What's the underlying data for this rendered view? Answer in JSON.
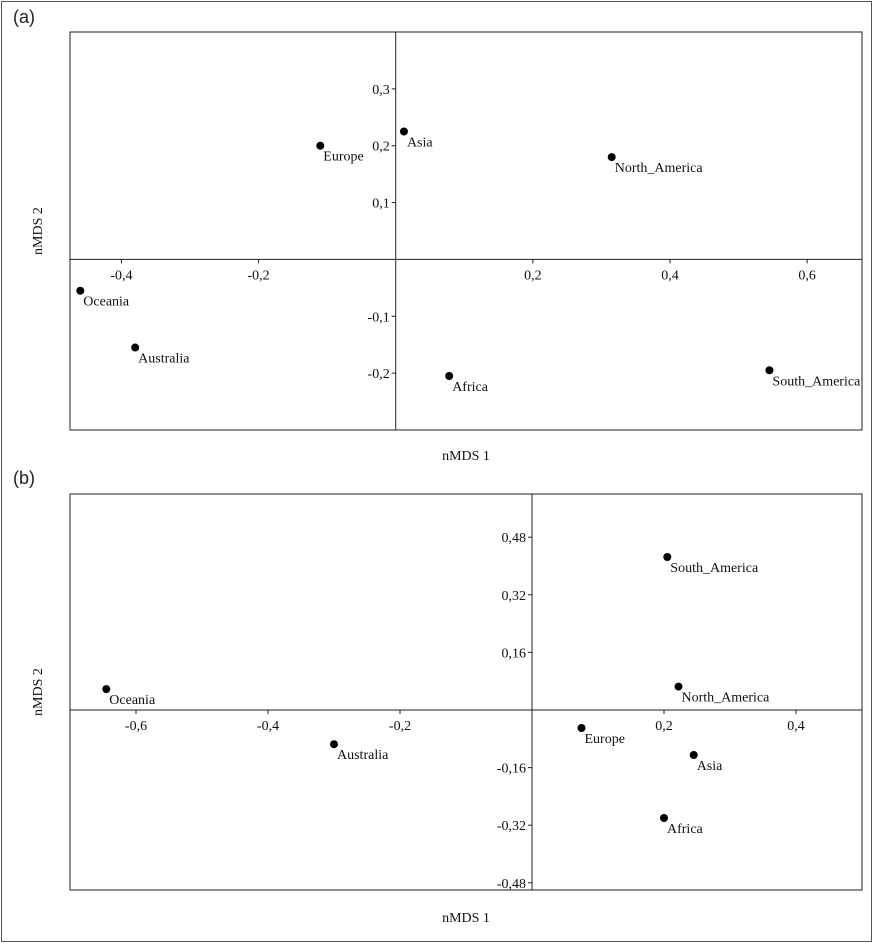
{
  "chart_data": [
    {
      "panel": "(a)",
      "type": "scatter",
      "xlabel": "nMDS 1",
      "ylabel": "nMDS 2",
      "xlim": [
        -0.475,
        0.68
      ],
      "ylim": [
        -0.3,
        0.4
      ],
      "xticks": [
        -0.4,
        -0.2,
        0.2,
        0.4,
        0.6
      ],
      "xtick_labels": [
        "-0,4",
        "-0,2",
        "0,2",
        "0,4",
        "0,6"
      ],
      "yticks": [
        0.3,
        0.2,
        0.1,
        -0.1,
        -0.2
      ],
      "ytick_labels": [
        "0,3",
        "0,2",
        "0,1",
        "-0,1",
        "-0,2"
      ],
      "points": [
        {
          "label": "Europe",
          "x": -0.11,
          "y": 0.2
        },
        {
          "label": "Asia",
          "x": 0.012,
          "y": 0.225
        },
        {
          "label": "North_America",
          "x": 0.315,
          "y": 0.18
        },
        {
          "label": "Oceania",
          "x": -0.46,
          "y": -0.055
        },
        {
          "label": "Australia",
          "x": -0.38,
          "y": -0.155
        },
        {
          "label": "Africa",
          "x": 0.078,
          "y": -0.205
        },
        {
          "label": "South_America",
          "x": 0.545,
          "y": -0.195
        }
      ]
    },
    {
      "panel": "(b)",
      "type": "scatter",
      "xlabel": "nMDS 1",
      "ylabel": "nMDS 2",
      "xlim": [
        -0.7,
        0.5
      ],
      "ylim": [
        -0.5,
        0.6
      ],
      "xticks": [
        -0.6,
        -0.4,
        -0.2,
        0.2,
        0.4
      ],
      "xtick_labels": [
        "-0,6",
        "-0,4",
        "-0,2",
        "0,2",
        "0,4"
      ],
      "yticks": [
        0.48,
        0.32,
        0.16,
        -0.16,
        -0.32,
        -0.48
      ],
      "ytick_labels": [
        "0,48",
        "0,32",
        "0,16",
        "-0,16",
        "-0,32",
        "-0,48"
      ],
      "points": [
        {
          "label": "Oceania",
          "x": -0.645,
          "y": 0.058
        },
        {
          "label": "Australia",
          "x": -0.3,
          "y": -0.095
        },
        {
          "label": "Europe",
          "x": 0.075,
          "y": -0.05
        },
        {
          "label": "South_America",
          "x": 0.205,
          "y": 0.425
        },
        {
          "label": "North_America",
          "x": 0.222,
          "y": 0.065
        },
        {
          "label": "Asia",
          "x": 0.245,
          "y": -0.125
        },
        {
          "label": "Africa",
          "x": 0.2,
          "y": -0.3
        }
      ]
    }
  ]
}
